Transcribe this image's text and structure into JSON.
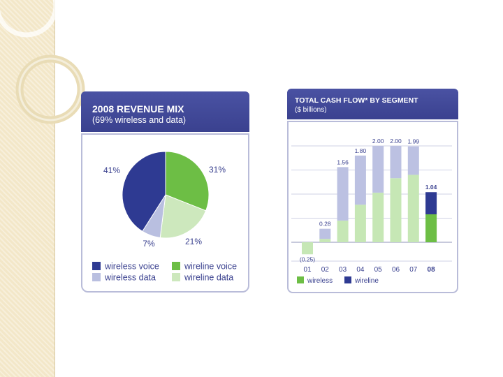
{
  "pie_panel": {
    "title": "2008 REVENUE MIX",
    "subtitle": "(69% wireless and data)"
  },
  "bar_panel": {
    "title": "TOTAL CASH FLOW* BY SEGMENT",
    "subtitle": "($ billions)"
  },
  "chart_data": [
    {
      "type": "pie",
      "title": "2008 REVENUE MIX",
      "subtitle": "(69% wireless and data)",
      "slices": [
        {
          "name": "wireline voice",
          "value": 31,
          "label": "31%",
          "color": "#6dbe45"
        },
        {
          "name": "wireline data",
          "value": 21,
          "label": "21%",
          "color": "#cde8bd"
        },
        {
          "name": "wireless data",
          "value": 7,
          "label": "7%",
          "color": "#b9bfe0"
        },
        {
          "name": "wireless voice",
          "value": 41,
          "label": "41%",
          "color": "#2e3a92"
        }
      ],
      "legend": [
        {
          "name": "wireless voice",
          "color": "#2e3a92"
        },
        {
          "name": "wireline voice",
          "color": "#6dbe45"
        },
        {
          "name": "wireless data",
          "color": "#b9bfe0"
        },
        {
          "name": "wireline data",
          "color": "#cde8bd"
        }
      ],
      "legend_position": "bottom"
    },
    {
      "type": "bar",
      "title": "TOTAL CASH FLOW* BY SEGMENT",
      "subtitle": "($ billions)",
      "categories": [
        "01",
        "02",
        "03",
        "04",
        "05",
        "06",
        "07",
        "08"
      ],
      "totals": [
        -0.25,
        0.28,
        1.56,
        1.8,
        2.0,
        2.0,
        1.99,
        1.04
      ],
      "total_labels": [
        "(0.25)",
        "0.28",
        "1.56",
        "1.80",
        "2.00",
        "2.00",
        "1.99",
        "1.04"
      ],
      "series": [
        {
          "name": "wireless",
          "values": [
            -0.25,
            0.07,
            0.45,
            0.78,
            1.03,
            1.33,
            1.4,
            0.58
          ]
        },
        {
          "name": "wireline",
          "values": [
            0.0,
            0.21,
            1.11,
            1.02,
            0.97,
            0.67,
            0.59,
            0.46
          ]
        }
      ],
      "highlight_category": "08",
      "colors": {
        "wireless_faded": "#c6e7b5",
        "wireline_faded": "#bcc1e2",
        "wireless": "#6dbe45",
        "wireline": "#2e3a92"
      },
      "ylim": [
        -0.35,
        2.3
      ],
      "grid": true,
      "legend": [
        "wireless",
        "wireline"
      ],
      "legend_position": "bottom"
    }
  ]
}
